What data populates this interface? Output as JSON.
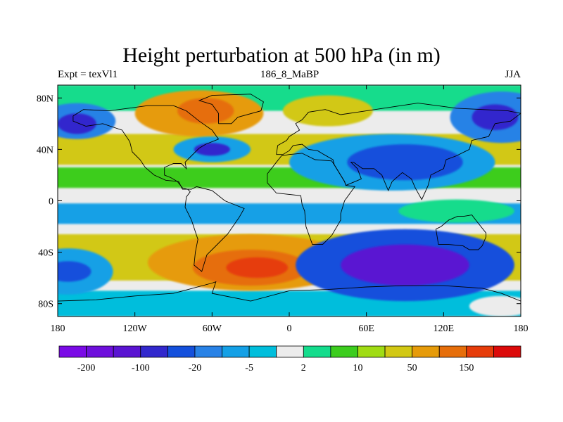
{
  "chart_data": {
    "type": "heatmap",
    "title": "Height perturbation at 500 hPa (in m)",
    "subtitle_left": "Expt = texVl1",
    "subtitle_center": "186_8_MaBP",
    "subtitle_right": "JJA",
    "xlim": [
      -180,
      180
    ],
    "ylim": [
      -90,
      90
    ],
    "x_ticks": [
      {
        "value": -180,
        "label": "180"
      },
      {
        "value": -120,
        "label": "120W"
      },
      {
        "value": -60,
        "label": "60W"
      },
      {
        "value": 0,
        "label": "0"
      },
      {
        "value": 60,
        "label": "60E"
      },
      {
        "value": 120,
        "label": "120E"
      },
      {
        "value": 180,
        "label": "180"
      }
    ],
    "y_ticks": [
      {
        "value": 80,
        "label": "80N"
      },
      {
        "value": 40,
        "label": "40N"
      },
      {
        "value": 0,
        "label": "0"
      },
      {
        "value": -40,
        "label": "40S"
      },
      {
        "value": -80,
        "label": "80S"
      }
    ],
    "colorbar": {
      "colors": [
        "#7a0ae6",
        "#6e0fdc",
        "#5a14d2",
        "#3228cd",
        "#1450dc",
        "#2882e6",
        "#14a0e6",
        "#00bedc",
        "#ececec",
        "#14dc8c",
        "#3ccd1e",
        "#a0dc14",
        "#d2c814",
        "#e69b0a",
        "#e66e0a",
        "#e63c0a",
        "#dc0a0a"
      ],
      "labels": [
        {
          "boundary": 1,
          "text": "-200"
        },
        {
          "boundary": 3,
          "text": "-100"
        },
        {
          "boundary": 5,
          "text": "-20"
        },
        {
          "boundary": 7,
          "text": "-5"
        },
        {
          "boundary": 9,
          "text": "2"
        },
        {
          "boundary": 11,
          "text": "10"
        },
        {
          "boundary": 13,
          "text": "50"
        },
        {
          "boundary": 15,
          "text": "150"
        }
      ]
    },
    "field_regions": [
      {
        "type": "band",
        "lat": [
          -90,
          90
        ],
        "level": 8
      },
      {
        "type": "band",
        "lat": [
          70,
          90
        ],
        "level": 9
      },
      {
        "type": "band",
        "lat": [
          28,
          52
        ],
        "level": 12
      },
      {
        "type": "band",
        "lat": [
          10,
          26
        ],
        "level": 10
      },
      {
        "type": "band",
        "lat": [
          -18,
          -2
        ],
        "level": 6
      },
      {
        "type": "band",
        "lat": [
          -62,
          -26
        ],
        "level": 12
      },
      {
        "type": "band",
        "lat": [
          -90,
          -70
        ],
        "level": 7
      },
      {
        "type": "blob",
        "lon": -165,
        "lat": 62,
        "rlon": 30,
        "rlat": 14,
        "level": 5
      },
      {
        "type": "blob",
        "lon": -165,
        "lat": 60,
        "rlon": 15,
        "rlat": 8,
        "level": 3
      },
      {
        "type": "blob",
        "lon": -70,
        "lat": 68,
        "rlon": 50,
        "rlat": 18,
        "level": 13
      },
      {
        "type": "blob",
        "lon": -65,
        "lat": 70,
        "rlon": 22,
        "rlat": 10,
        "level": 14
      },
      {
        "type": "blob",
        "lon": -60,
        "lat": 40,
        "rlon": 30,
        "rlat": 10,
        "level": 6
      },
      {
        "type": "blob",
        "lon": -60,
        "lat": 40,
        "rlon": 14,
        "rlat": 5,
        "level": 3
      },
      {
        "type": "blob",
        "lon": 30,
        "lat": 70,
        "rlon": 35,
        "rlat": 12,
        "level": 12
      },
      {
        "type": "blob",
        "lon": 80,
        "lat": 30,
        "rlon": 80,
        "rlat": 22,
        "level": 6
      },
      {
        "type": "blob",
        "lon": 90,
        "lat": 30,
        "rlon": 45,
        "rlat": 14,
        "level": 4
      },
      {
        "type": "blob",
        "lon": 165,
        "lat": 65,
        "rlon": 40,
        "rlat": 20,
        "level": 5
      },
      {
        "type": "blob",
        "lon": 160,
        "lat": 65,
        "rlon": 18,
        "rlat": 10,
        "level": 3
      },
      {
        "type": "blob",
        "lon": 130,
        "lat": -8,
        "rlon": 45,
        "rlat": 9,
        "level": 9
      },
      {
        "type": "blob",
        "lon": -30,
        "lat": -48,
        "rlon": 80,
        "rlat": 22,
        "level": 13
      },
      {
        "type": "blob",
        "lon": -30,
        "lat": -52,
        "rlon": 45,
        "rlat": 14,
        "level": 14
      },
      {
        "type": "blob",
        "lon": -25,
        "lat": -52,
        "rlon": 24,
        "rlat": 8,
        "level": 15
      },
      {
        "type": "blob",
        "lon": -172,
        "lat": -55,
        "rlon": 35,
        "rlat": 18,
        "level": 6
      },
      {
        "type": "blob",
        "lon": -172,
        "lat": -55,
        "rlon": 18,
        "rlat": 8,
        "level": 4
      },
      {
        "type": "blob",
        "lon": 90,
        "lat": -50,
        "rlon": 85,
        "rlat": 28,
        "level": 4
      },
      {
        "type": "blob",
        "lon": 90,
        "lat": -50,
        "rlon": 50,
        "rlat": 16,
        "level": 2
      },
      {
        "type": "blob",
        "lon": 165,
        "lat": -82,
        "rlon": 25,
        "rlat": 8,
        "level": 8
      }
    ],
    "continent_outlines": [
      [
        [
          -168,
          66
        ],
        [
          -160,
          71
        ],
        [
          -140,
          70
        ],
        [
          -125,
          72
        ],
        [
          -110,
          74
        ],
        [
          -90,
          74
        ],
        [
          -80,
          70
        ],
        [
          -70,
          62
        ],
        [
          -60,
          55
        ],
        [
          -55,
          48
        ],
        [
          -65,
          44
        ],
        [
          -70,
          41
        ],
        [
          -76,
          35
        ],
        [
          -81,
          30
        ],
        [
          -80,
          25
        ],
        [
          -84,
          29
        ],
        [
          -90,
          29
        ],
        [
          -97,
          26
        ],
        [
          -97,
          20
        ],
        [
          -92,
          18
        ],
        [
          -87,
          15
        ],
        [
          -83,
          10
        ],
        [
          -79,
          9
        ],
        [
          -77,
          7
        ],
        [
          -80,
          3
        ],
        [
          -81,
          -5
        ],
        [
          -76,
          -15
        ],
        [
          -71,
          -30
        ],
        [
          -73,
          -40
        ],
        [
          -74,
          -50
        ],
        [
          -68,
          -55
        ],
        [
          -64,
          -42
        ],
        [
          -57,
          -35
        ],
        [
          -48,
          -26
        ],
        [
          -39,
          -13
        ],
        [
          -35,
          -6
        ],
        [
          -50,
          0
        ],
        [
          -60,
          8
        ],
        [
          -72,
          11
        ],
        [
          -76,
          9
        ],
        [
          -83,
          9
        ],
        [
          -86,
          15
        ],
        [
          -96,
          16
        ],
        [
          -105,
          20
        ],
        [
          -112,
          26
        ],
        [
          -116,
          32
        ],
        [
          -122,
          38
        ],
        [
          -124,
          46
        ],
        [
          -130,
          55
        ],
        [
          -145,
          60
        ],
        [
          -158,
          58
        ],
        [
          -168,
          62
        ],
        [
          -168,
          66
        ]
      ],
      [
        [
          -10,
          36
        ],
        [
          -9,
          43
        ],
        [
          -2,
          47
        ],
        [
          0,
          50
        ],
        [
          8,
          55
        ],
        [
          5,
          60
        ],
        [
          10,
          63
        ],
        [
          15,
          69
        ],
        [
          28,
          71
        ],
        [
          40,
          67
        ],
        [
          60,
          70
        ],
        [
          80,
          73
        ],
        [
          100,
          76
        ],
        [
          115,
          74
        ],
        [
          130,
          72
        ],
        [
          150,
          71
        ],
        [
          170,
          70
        ],
        [
          180,
          68
        ],
        [
          172,
          62
        ],
        [
          160,
          60
        ],
        [
          155,
          50
        ],
        [
          142,
          47
        ],
        [
          140,
          40
        ],
        [
          130,
          35
        ],
        [
          122,
          32
        ],
        [
          120,
          25
        ],
        [
          110,
          20
        ],
        [
          108,
          12
        ],
        [
          103,
          1
        ],
        [
          98,
          10
        ],
        [
          95,
          17
        ],
        [
          88,
          22
        ],
        [
          80,
          15
        ],
        [
          77,
          8
        ],
        [
          72,
          20
        ],
        [
          66,
          25
        ],
        [
          57,
          25
        ],
        [
          50,
          30
        ],
        [
          48,
          30
        ],
        [
          53,
          25
        ],
        [
          56,
          17
        ],
        [
          44,
          12
        ],
        [
          43,
          15
        ],
        [
          35,
          28
        ],
        [
          34,
          32
        ],
        [
          27,
          36
        ],
        [
          22,
          39
        ],
        [
          15,
          40
        ],
        [
          10,
          44
        ],
        [
          3,
          43
        ],
        [
          0,
          39
        ],
        [
          -5,
          36
        ],
        [
          -10,
          36
        ]
      ],
      [
        [
          -17,
          21
        ],
        [
          -17,
          14
        ],
        [
          -10,
          6
        ],
        [
          0,
          5
        ],
        [
          9,
          4
        ],
        [
          10,
          -3
        ],
        [
          12,
          -8
        ],
        [
          13,
          -20
        ],
        [
          18,
          -34
        ],
        [
          26,
          -34
        ],
        [
          33,
          -27
        ],
        [
          40,
          -15
        ],
        [
          40,
          -10
        ],
        [
          43,
          0
        ],
        [
          51,
          11
        ],
        [
          44,
          12
        ],
        [
          43,
          15
        ],
        [
          35,
          28
        ],
        [
          33,
          31
        ],
        [
          20,
          32
        ],
        [
          10,
          37
        ],
        [
          0,
          36
        ],
        [
          -6,
          35
        ],
        [
          -10,
          30
        ],
        [
          -17,
          21
        ]
      ],
      [
        [
          114,
          -22
        ],
        [
          116,
          -34
        ],
        [
          124,
          -34
        ],
        [
          135,
          -35
        ],
        [
          140,
          -38
        ],
        [
          147,
          -38
        ],
        [
          150,
          -35
        ],
        [
          153,
          -28
        ],
        [
          153,
          -25
        ],
        [
          145,
          -15
        ],
        [
          142,
          -11
        ],
        [
          136,
          -12
        ],
        [
          131,
          -12
        ],
        [
          124,
          -15
        ],
        [
          118,
          -20
        ],
        [
          114,
          -22
        ]
      ],
      [
        [
          -180,
          -78
        ],
        [
          -150,
          -77
        ],
        [
          -120,
          -74
        ],
        [
          -90,
          -72
        ],
        [
          -60,
          -64
        ],
        [
          -57,
          -63
        ],
        [
          -60,
          -72
        ],
        [
          -30,
          -78
        ],
        [
          0,
          -70
        ],
        [
          30,
          -69
        ],
        [
          60,
          -67
        ],
        [
          90,
          -66
        ],
        [
          120,
          -66
        ],
        [
          150,
          -68
        ],
        [
          165,
          -72
        ],
        [
          180,
          -78
        ]
      ],
      [
        [
          -55,
          60
        ],
        [
          -45,
          60
        ],
        [
          -40,
          65
        ],
        [
          -22,
          70
        ],
        [
          -20,
          77
        ],
        [
          -30,
          83
        ],
        [
          -60,
          82
        ],
        [
          -70,
          78
        ],
        [
          -60,
          75
        ],
        [
          -55,
          68
        ],
        [
          -55,
          60
        ]
      ]
    ]
  }
}
